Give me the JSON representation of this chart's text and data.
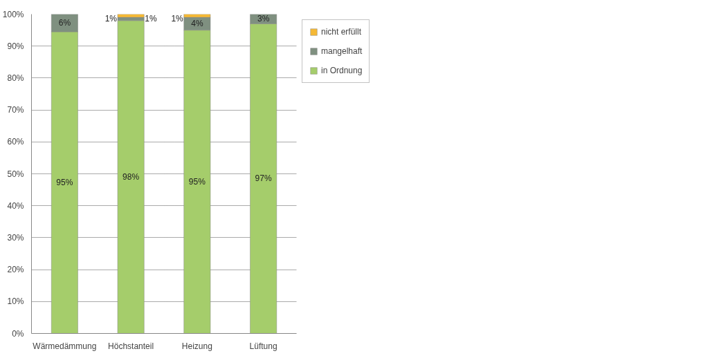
{
  "chart_data": {
    "type": "bar",
    "stacked": true,
    "categories": [
      "Wärmedämmung",
      "Höchstanteil",
      "Heizung",
      "Lüftung"
    ],
    "series": [
      {
        "name": "in Ordnung",
        "color": "#a5cd6b",
        "values": [
          94.5,
          98,
          95,
          97
        ],
        "value_labels": [
          "95%",
          "98%",
          "95%",
          "97%"
        ]
      },
      {
        "name": "mangelhaft",
        "color": "#7f9080",
        "values": [
          5.5,
          1,
          4,
          3
        ],
        "value_labels": [
          "6%",
          "1%",
          "4%",
          "3%"
        ]
      },
      {
        "name": "nicht erfüllt",
        "color": "#f5b935",
        "values": [
          null,
          1,
          1,
          null
        ],
        "value_labels": [
          null,
          "1%",
          "1%",
          null
        ]
      }
    ],
    "ylim": [
      0,
      100
    ],
    "yticks": [
      {
        "value": 0,
        "label": "0%"
      },
      {
        "value": 10,
        "label": "10%"
      },
      {
        "value": 20,
        "label": "20%"
      },
      {
        "value": 30,
        "label": "30%"
      },
      {
        "value": 40,
        "label": "40%"
      },
      {
        "value": 50,
        "label": "50%"
      },
      {
        "value": 60,
        "label": "60%"
      },
      {
        "value": 70,
        "label": "70%"
      },
      {
        "value": 80,
        "label": "80%"
      },
      {
        "value": 90,
        "label": "90%"
      },
      {
        "value": 100,
        "label": "100%"
      }
    ],
    "grid": "y",
    "legend": "right"
  }
}
